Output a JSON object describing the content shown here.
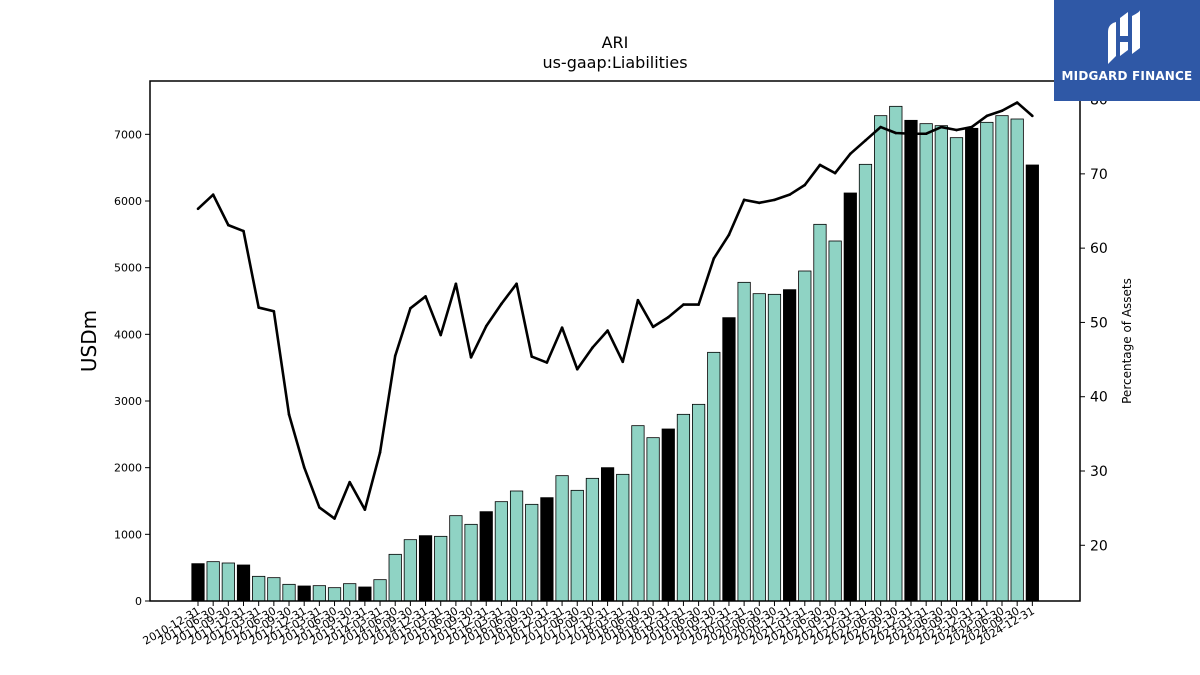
{
  "brand": {
    "name": "MIDGARD FINANCE",
    "bg_color": "#2f58a6",
    "icon": "midgard-logo-icon"
  },
  "chart_data": {
    "type": "bar",
    "title": "ARI",
    "subtitle": "us-gaap:Liabilities",
    "ylabel": "USDm",
    "y2label": "Percentage of Assets",
    "ylim": [
      0,
      7800
    ],
    "y2lim": [
      12.5,
      82.5
    ],
    "yticks": [
      0,
      1000,
      2000,
      3000,
      4000,
      5000,
      6000,
      7000
    ],
    "y2ticks": [
      20,
      30,
      40,
      50,
      60,
      70,
      80
    ],
    "grid": false,
    "bar_color": "#8fd3c4",
    "bar_highlight_color": "#000000",
    "line_color": "#000000",
    "categories": [
      "2010-12-31",
      "2011-06-30",
      "2011-09-30",
      "2011-12-31",
      "2012-03-31",
      "2012-06-30",
      "2012-09-30",
      "2012-12-31",
      "2013-03-31",
      "2013-06-30",
      "2013-09-30",
      "2013-12-31",
      "2014-03-31",
      "2014-06-30",
      "2014-09-30",
      "2014-12-31",
      "2015-03-31",
      "2015-06-30",
      "2015-09-30",
      "2015-12-31",
      "2016-03-31",
      "2016-06-30",
      "2016-09-30",
      "2016-12-31",
      "2017-03-31",
      "2017-06-30",
      "2017-09-30",
      "2017-12-31",
      "2018-03-31",
      "2018-06-30",
      "2018-09-30",
      "2018-12-31",
      "2019-03-31",
      "2019-06-30",
      "2019-09-30",
      "2019-12-31",
      "2020-03-31",
      "2020-06-30",
      "2020-09-30",
      "2020-12-31",
      "2021-03-31",
      "2021-06-30",
      "2021-09-30",
      "2021-12-31",
      "2022-03-31",
      "2022-06-30",
      "2022-09-30",
      "2022-12-31",
      "2023-03-31",
      "2023-06-30",
      "2023-09-30",
      "2023-12-31",
      "2024-03-31",
      "2024-06-30",
      "2024-09-30",
      "2024-12-31"
    ],
    "series": [
      {
        "type": "bar",
        "values": [
          560,
          590,
          570,
          540,
          370,
          350,
          250,
          225,
          230,
          200,
          260,
          210,
          320,
          700,
          920,
          980,
          970,
          1280,
          1150,
          1340,
          1490,
          1650,
          1450,
          1550,
          1880,
          1660,
          1840,
          2000,
          1900,
          2630,
          2450,
          2580,
          2800,
          2950,
          3730,
          4250,
          4780,
          4610,
          4600,
          4670,
          4950,
          5650,
          5400,
          6120,
          6550,
          7280,
          7420,
          7210,
          7160,
          7130,
          6950,
          7090,
          7180,
          7280,
          7230,
          6540
        ],
        "highlight": [
          true,
          false,
          false,
          true,
          false,
          false,
          false,
          true,
          false,
          false,
          false,
          true,
          false,
          false,
          false,
          true,
          false,
          false,
          false,
          true,
          false,
          false,
          false,
          true,
          false,
          false,
          false,
          true,
          false,
          false,
          false,
          true,
          false,
          false,
          false,
          true,
          false,
          false,
          false,
          true,
          false,
          false,
          false,
          true,
          false,
          false,
          false,
          true,
          false,
          false,
          false,
          true,
          false,
          false,
          false,
          true
        ]
      },
      {
        "type": "line",
        "axis": "right",
        "values": [
          65.3,
          67.2,
          63.1,
          62.3,
          52.0,
          51.5,
          37.6,
          30.5,
          25.1,
          23.6,
          28.5,
          24.8,
          32.5,
          45.5,
          51.9,
          53.5,
          48.3,
          55.2,
          45.3,
          49.5,
          52.5,
          55.2,
          45.4,
          44.6,
          49.3,
          43.7,
          46.6,
          48.9,
          44.7,
          53.0,
          49.4,
          50.7,
          52.4,
          52.4,
          58.6,
          61.8,
          66.5,
          66.1,
          66.5,
          67.2,
          68.5,
          71.2,
          70.1,
          72.7,
          74.5,
          76.3,
          75.5,
          75.4,
          75.4,
          76.3,
          75.9,
          76.3,
          77.8,
          78.5,
          79.6,
          77.8
        ]
      }
    ]
  }
}
